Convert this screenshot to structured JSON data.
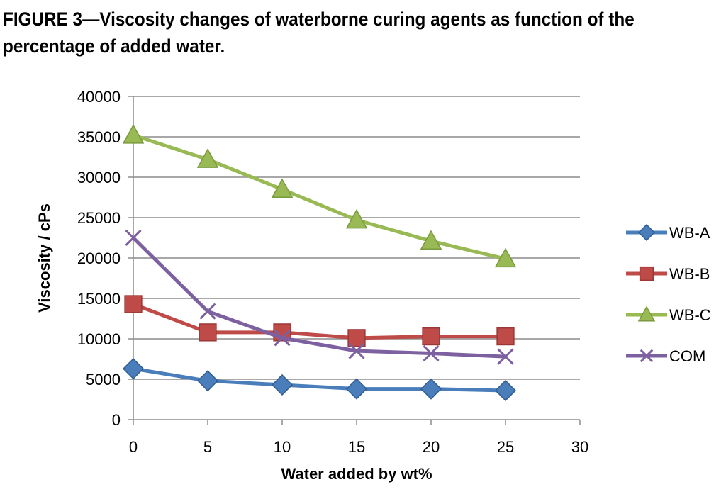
{
  "chart_data": {
    "type": "line",
    "title": "FIGURE 3—Viscosity changes of waterborne curing agents as function of the percentage of added water.",
    "xlabel": "Water added by wt%",
    "ylabel": "Viscosity / cPs",
    "x": [
      0,
      5,
      10,
      15,
      20,
      25
    ],
    "xlim": [
      0,
      30
    ],
    "xticks": [
      0,
      5,
      10,
      15,
      20,
      25,
      30
    ],
    "ylim": [
      0,
      40000
    ],
    "yticks": [
      0,
      5000,
      10000,
      15000,
      20000,
      25000,
      30000,
      35000,
      40000
    ],
    "grid": "horizontal",
    "legend": "right",
    "series": [
      {
        "name": "WB-A",
        "marker": "diamond",
        "color": "#4a7ebb",
        "values": [
          6300,
          4800,
          4300,
          3800,
          3800,
          3600
        ]
      },
      {
        "name": "WB-B",
        "marker": "square",
        "color": "#be4b48",
        "values": [
          14300,
          10800,
          10800,
          10100,
          10300,
          10300
        ]
      },
      {
        "name": "WB-C",
        "marker": "triangle",
        "color": "#98b954",
        "values": [
          35200,
          32200,
          28500,
          24700,
          22100,
          19900
        ]
      },
      {
        "name": "COM",
        "marker": "cross",
        "color": "#7d60a0",
        "values": [
          22500,
          13400,
          10100,
          8500,
          8200,
          7800
        ]
      }
    ]
  }
}
